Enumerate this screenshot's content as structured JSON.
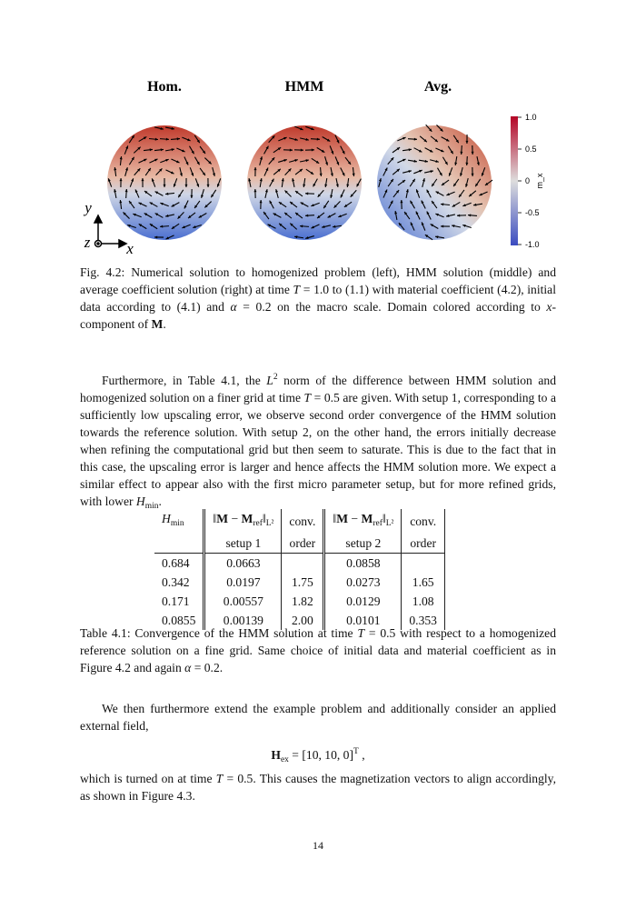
{
  "figure": {
    "panels": [
      "Hom.",
      "HMM",
      "Avg."
    ],
    "colorbar": {
      "ticks": [
        "1.0",
        "0.5",
        "0",
        "-0.5",
        "-1.0"
      ],
      "label": "m_x"
    },
    "axes": {
      "y": "y",
      "z": "z",
      "x": "x"
    }
  },
  "figure_caption": [
    {
      "t": "Fig. 4.2: Numerical solution to homogenized problem (left), HMM solution (middle) and average coefficient solution (right) at time "
    },
    {
      "t": "T",
      "s": "i"
    },
    {
      "t": " = 1.0 to (1.1) with material coefficient (4.2), initial data according to (4.1) and "
    },
    {
      "t": "α",
      "s": "i"
    },
    {
      "t": " = 0.2 on the macro scale. Domain colored according to "
    },
    {
      "t": "x",
      "s": "i"
    },
    {
      "t": "-component of "
    },
    {
      "t": "M",
      "s": "b"
    },
    {
      "t": "."
    }
  ],
  "paragraphs": [
    [
      {
        "t": "Furthermore, in Table 4.1, the "
      },
      {
        "t": "L",
        "s": "i"
      },
      {
        "t": "2",
        "s": "sup"
      },
      {
        "t": " norm of the difference between HMM solution and homogenized solution on a finer grid at time "
      },
      {
        "t": "T",
        "s": "i"
      },
      {
        "t": " = 0.5 are given. With setup 1, corresponding to a sufficiently low upscaling error, we observe second order convergence of the HMM solution towards the reference solution. With setup 2, on the other hand, the errors initially decrease when refining the computational grid but then seem to saturate. This is due to the fact that in this case, the upscaling error is larger and hence affects the HMM solution more. We expect a similar effect to appear also with the first micro parameter setup, but for more refined grids, with lower "
      },
      {
        "t": "H",
        "s": "i"
      },
      {
        "t": "min",
        "s": "sub"
      },
      {
        "t": "."
      }
    ],
    [
      {
        "t": "We then furthermore extend the example problem and additionally consider an applied external field,"
      }
    ],
    [
      {
        "t": "which is turned on at time "
      },
      {
        "t": "T",
        "s": "i"
      },
      {
        "t": " = 0.5. This causes the magnetization vectors to align accordingly, as shown in Figure 4.3."
      }
    ]
  ],
  "equation": [
    {
      "t": "H",
      "s": "b"
    },
    {
      "t": "ex",
      "s": "sub"
    },
    {
      "t": " = [10, 10, 0]"
    },
    {
      "t": "T",
      "s": "sup"
    },
    {
      "t": " ,"
    }
  ],
  "table": {
    "header": [
      [
        [
          {
            "t": "H",
            "s": "i"
          },
          {
            "t": "min",
            "s": "sub"
          }
        ],
        [
          {
            "t": "‖"
          },
          {
            "t": "M",
            "s": "b"
          },
          {
            "t": " − "
          },
          {
            "t": "M",
            "s": "b"
          },
          {
            "t": "ref",
            "s": "sub"
          },
          {
            "t": "‖"
          },
          {
            "t": "L²",
            "s": "sub"
          }
        ],
        [
          {
            "t": "conv."
          }
        ],
        [
          {
            "t": "‖"
          },
          {
            "t": "M",
            "s": "b"
          },
          {
            "t": " − "
          },
          {
            "t": "M",
            "s": "b"
          },
          {
            "t": "ref",
            "s": "sub"
          },
          {
            "t": "‖"
          },
          {
            "t": "L²",
            "s": "sub"
          }
        ],
        [
          {
            "t": "conv."
          }
        ]
      ],
      [
        [
          {
            "t": "setup 1"
          }
        ],
        [
          {
            "t": "order"
          }
        ],
        [
          {
            "t": "setup 2"
          }
        ],
        [
          {
            "t": "order"
          }
        ]
      ]
    ],
    "rows": [
      [
        "0.684",
        "0.0663",
        null,
        "0.0858",
        null
      ],
      [
        "0.342",
        "0.0197",
        "1.75",
        "0.0273",
        "1.65"
      ],
      [
        "0.171",
        "0.00557",
        "1.82",
        "0.0129",
        "1.08"
      ],
      [
        "0.0855",
        "0.00139",
        "2.00",
        "0.0101",
        "0.353"
      ]
    ]
  },
  "table_caption": [
    {
      "t": "Table 4.1: Convergence of the HMM solution at time "
    },
    {
      "t": "T",
      "s": "i"
    },
    {
      "t": " = 0.5 with respect to a homogenized reference solution on a fine grid. Same choice of initial data and material coefficient as in Figure 4.2 and again "
    },
    {
      "t": "α",
      "s": "i"
    },
    {
      "t": " = 0.2."
    }
  ],
  "page_number": "14"
}
